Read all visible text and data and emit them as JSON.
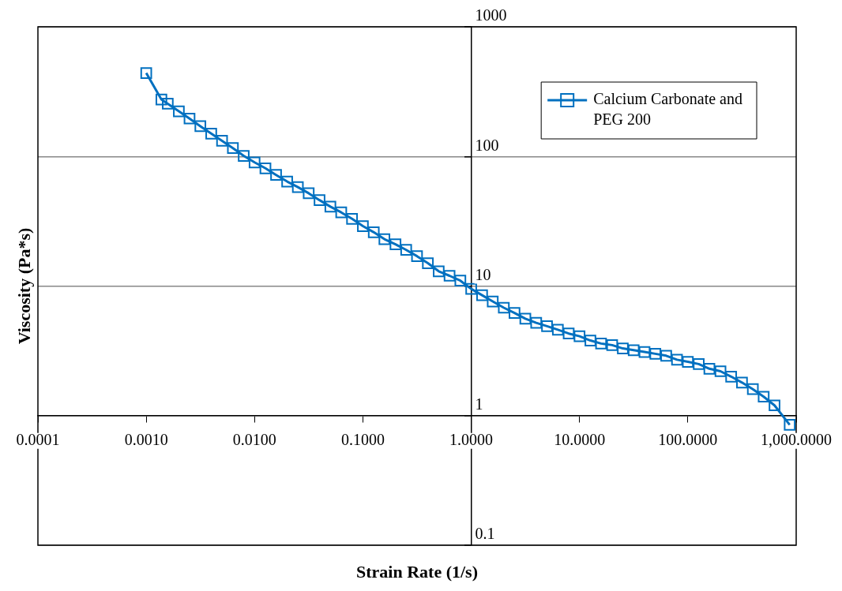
{
  "chart_data": {
    "type": "line",
    "xlabel": "Strain Rate (1/s)",
    "ylabel": "Viscosity (Pa*s)",
    "log": "xy",
    "xlim": [
      0.0001,
      1000
    ],
    "ylim": [
      0.1,
      1000
    ],
    "xticks": [
      {
        "value": 0.0001,
        "label": "0.0001"
      },
      {
        "value": 0.001,
        "label": "0.0010"
      },
      {
        "value": 0.01,
        "label": "0.0100"
      },
      {
        "value": 0.1,
        "label": "0.1000"
      },
      {
        "value": 1,
        "label": "1.0000"
      },
      {
        "value": 10,
        "label": "10.0000"
      },
      {
        "value": 100,
        "label": "100.0000"
      },
      {
        "value": 1000,
        "label": "1,000.0000"
      }
    ],
    "yticks": [
      0.1,
      1,
      10,
      100,
      1000
    ],
    "grid": "y",
    "legend": "top right",
    "marker": "square",
    "line_style": "solid",
    "series": [
      {
        "name": "Calcium Carbonate and PEG 200",
        "color": "#0070c0",
        "x": [
          0.001,
          0.00138,
          0.00158,
          0.002,
          0.00251,
          0.00316,
          0.00398,
          0.00501,
          0.00631,
          0.00794,
          0.01,
          0.0126,
          0.0158,
          0.02,
          0.0251,
          0.0316,
          0.0398,
          0.0501,
          0.0631,
          0.0794,
          0.1,
          0.126,
          0.158,
          0.2,
          0.251,
          0.316,
          0.398,
          0.501,
          0.631,
          0.794,
          1,
          1.26,
          1.58,
          2,
          2.51,
          3.16,
          3.98,
          5.01,
          6.31,
          7.94,
          10,
          12.6,
          15.8,
          20,
          25.1,
          31.6,
          39.8,
          50.1,
          63.1,
          79.4,
          100,
          126,
          158,
          200,
          251,
          316,
          398,
          501,
          631,
          871
        ],
        "values": [
          440,
          275,
          255,
          223,
          196,
          171,
          150,
          132,
          116,
          101,
          90,
          81,
          72,
          64,
          58,
          52,
          46,
          41,
          37,
          33,
          29,
          26,
          23,
          21,
          19,
          17,
          15,
          13,
          12,
          11,
          9.5,
          8.5,
          7.6,
          6.8,
          6.2,
          5.6,
          5.2,
          4.9,
          4.6,
          4.3,
          4.1,
          3.8,
          3.6,
          3.5,
          3.3,
          3.2,
          3.1,
          3.0,
          2.9,
          2.7,
          2.6,
          2.5,
          2.3,
          2.2,
          2.0,
          1.8,
          1.6,
          1.4,
          1.2,
          0.85
        ]
      }
    ]
  }
}
